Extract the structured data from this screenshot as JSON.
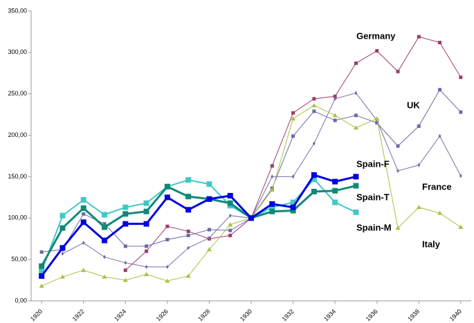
{
  "chart_data": {
    "type": "line",
    "x": [
      1920,
      1921,
      1922,
      1923,
      1924,
      1925,
      1926,
      1927,
      1928,
      1929,
      1930,
      1931,
      1932,
      1933,
      1934,
      1935,
      1936,
      1937,
      1938,
      1939,
      1940
    ],
    "xlim": [
      1919.5,
      1940.5
    ],
    "xticks": [
      1920,
      1922,
      1924,
      1926,
      1928,
      1930,
      1932,
      1934,
      1936,
      1938,
      1940
    ],
    "ylim": [
      0,
      350
    ],
    "yticks": [
      {
        "value": 0,
        "label": "0,00"
      },
      {
        "value": 50,
        "label": "50,00"
      },
      {
        "value": 100,
        "label": "100,00"
      },
      {
        "value": 150,
        "label": "150,00"
      },
      {
        "value": 200,
        "label": "200,00"
      },
      {
        "value": 250,
        "label": "250,00"
      },
      {
        "value": 300,
        "label": "300,00"
      },
      {
        "value": 350,
        "label": "350,00"
      }
    ],
    "grid": false,
    "series": [
      {
        "name": "Germany",
        "color": "#9e3a6c",
        "values": [
          null,
          null,
          null,
          null,
          37,
          60,
          90,
          84,
          75,
          79,
          100,
          163,
          227,
          244,
          247,
          287,
          302,
          277,
          319,
          312,
          270
        ]
      },
      {
        "name": "UK",
        "color": "#6a6aa8",
        "values": [
          59,
          62,
          105,
          93,
          66,
          66,
          74,
          79,
          86,
          85,
          100,
          136,
          199,
          229,
          218,
          224,
          215,
          187,
          211,
          255,
          228
        ]
      },
      {
        "name": "France",
        "color": "#7070a8",
        "values": [
          null,
          57,
          70,
          53,
          46,
          41,
          41,
          64,
          76,
          103,
          100,
          150,
          150,
          190,
          244,
          251,
          218,
          157,
          164,
          199,
          151
        ]
      },
      {
        "name": "Italy",
        "color": "#a8c040",
        "values": [
          18,
          29,
          37,
          29,
          25,
          32,
          24,
          30,
          62,
          92,
          100,
          134,
          220,
          236,
          224,
          209,
          220,
          88,
          113,
          106,
          89
        ]
      },
      {
        "name": "Spain-F",
        "color": "#0000e0",
        "values": [
          30,
          64,
          95,
          73,
          93,
          93,
          125,
          110,
          123,
          127,
          100,
          117,
          113,
          152,
          144,
          150,
          null,
          null,
          null,
          null,
          null
        ]
      },
      {
        "name": "Spain-T",
        "color": "#108878",
        "values": [
          42,
          88,
          112,
          89,
          105,
          108,
          138,
          126,
          123,
          118,
          100,
          108,
          109,
          132,
          133,
          139,
          null,
          null,
          null,
          null,
          null
        ]
      },
      {
        "name": "Spain-M",
        "color": "#40c8c8",
        "values": [
          36,
          103,
          122,
          104,
          113,
          118,
          138,
          146,
          141,
          115,
          100,
          113,
          119,
          147,
          119,
          107,
          null,
          null,
          null,
          null,
          null
        ]
      }
    ]
  }
}
